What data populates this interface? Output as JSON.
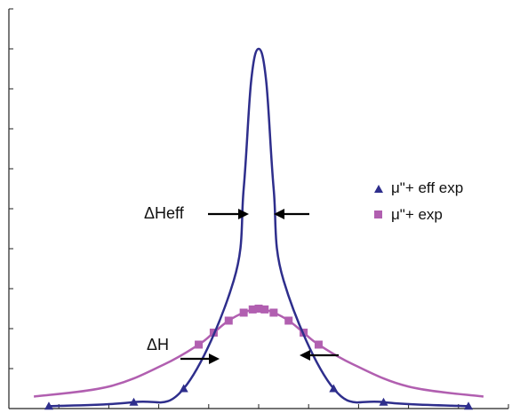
{
  "chart_data": {
    "type": "line",
    "title": "",
    "xlabel": "",
    "ylabel": "",
    "xlim": [
      -5,
      5
    ],
    "ylim": [
      0,
      10
    ],
    "grid": false,
    "legend_position": "right",
    "series": [
      {
        "name": "μ\"+ eff exp",
        "color": "#2e2e8c",
        "marker": "triangle",
        "x": [
          -4.2,
          -2.5,
          -1.5,
          -0.5,
          -0.3,
          -0.15,
          0,
          0.15,
          0.3,
          0.5,
          1.5,
          2.5,
          4.2
        ],
        "y": [
          0.06,
          0.16,
          0.5,
          3.2,
          5.5,
          8.2,
          9.0,
          8.2,
          5.5,
          3.2,
          0.5,
          0.16,
          0.06
        ],
        "markers_x": [
          -4.2,
          -2.5,
          -1.5,
          1.5,
          2.5,
          4.2
        ],
        "markers_y": [
          0.06,
          0.16,
          0.5,
          0.5,
          0.16,
          0.06
        ]
      },
      {
        "name": "μ\"+ exp",
        "color": "#b15fb0",
        "marker": "square",
        "x": [
          -4.5,
          -3.0,
          -1.9,
          -1.2,
          -0.9,
          -0.6,
          -0.3,
          0,
          0.3,
          0.6,
          0.9,
          1.2,
          1.9,
          3.0,
          4.5
        ],
        "y": [
          0.3,
          0.55,
          1.1,
          1.6,
          1.9,
          2.2,
          2.4,
          2.5,
          2.4,
          2.2,
          1.9,
          1.6,
          1.1,
          0.55,
          0.3
        ],
        "markers_x": [
          -1.2,
          -0.9,
          -0.6,
          -0.3,
          -0.12,
          0,
          0.12,
          0.3,
          0.6,
          0.9,
          1.2
        ],
        "markers_y": [
          1.6,
          1.9,
          2.2,
          2.4,
          2.48,
          2.5,
          2.48,
          2.4,
          2.2,
          1.9,
          1.6
        ]
      }
    ],
    "annotations": [
      {
        "text": "ΔHeff",
        "x": -0.1,
        "y": 4.3
      },
      {
        "text": "ΔH",
        "x": -1.0,
        "y": 1.25
      }
    ]
  },
  "icons": {
    "arrow": "arrow-icon"
  }
}
